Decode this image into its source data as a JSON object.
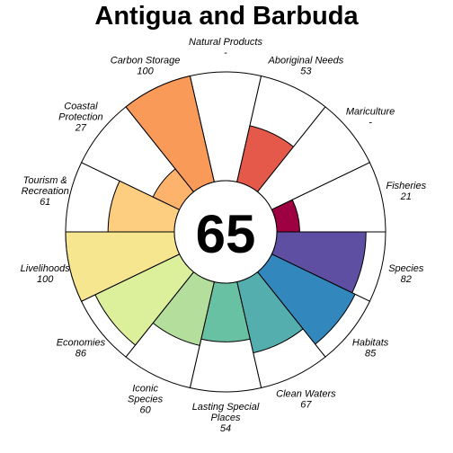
{
  "chart_data": {
    "type": "flower",
    "title": "Antigua and Barbuda",
    "score": "65",
    "max": 100,
    "petals": [
      {
        "name": "Natural Products",
        "lines": [
          "Natural Products"
        ],
        "value_label": "-",
        "value": null,
        "color": "#9E0142"
      },
      {
        "name": "Aboriginal Needs",
        "lines": [
          "Aboriginal Needs"
        ],
        "value_label": "53",
        "value": 53,
        "color": "#E5594B"
      },
      {
        "name": "Mariculture",
        "lines": [
          "Mariculture"
        ],
        "value_label": "-",
        "value": null,
        "color": "#D53E4F"
      },
      {
        "name": "Fisheries",
        "lines": [
          "Fisheries"
        ],
        "value_label": "21",
        "value": 21,
        "color": "#9E0142"
      },
      {
        "name": "Species",
        "lines": [
          "Species"
        ],
        "value_label": "82",
        "value": 82,
        "color": "#5E4FA2"
      },
      {
        "name": "Habitats",
        "lines": [
          "Habitats"
        ],
        "value_label": "85",
        "value": 85,
        "color": "#3288BD"
      },
      {
        "name": "Clean Waters",
        "lines": [
          "Clean Waters"
        ],
        "value_label": "67",
        "value": 67,
        "color": "#54AEAD"
      },
      {
        "name": "Lasting Special Places",
        "lines": [
          "Lasting Special",
          "Places"
        ],
        "value_label": "54",
        "value": 54,
        "color": "#69C1A4"
      },
      {
        "name": "Iconic Species",
        "lines": [
          "Iconic",
          "Species"
        ],
        "value_label": "60",
        "value": 60,
        "color": "#B4DE9C"
      },
      {
        "name": "Economies",
        "lines": [
          "Economies"
        ],
        "value_label": "86",
        "value": 86,
        "color": "#DCEF9A"
      },
      {
        "name": "Livelihoods",
        "lines": [
          "Livelihoods"
        ],
        "value_label": "100",
        "value": 100,
        "color": "#F6E68F"
      },
      {
        "name": "Tourism & Recreation",
        "lines": [
          "Tourism &",
          "Recreation"
        ],
        "value_label": "61",
        "value": 61,
        "color": "#FDCE7F"
      },
      {
        "name": "Coastal Protection",
        "lines": [
          "Coastal",
          "Protection"
        ],
        "value_label": "27",
        "value": 27,
        "color": "#FDB36C"
      },
      {
        "name": "Carbon Storage",
        "lines": [
          "Carbon Storage"
        ],
        "value_label": "100",
        "value": 100,
        "color": "#F99A58"
      }
    ]
  }
}
